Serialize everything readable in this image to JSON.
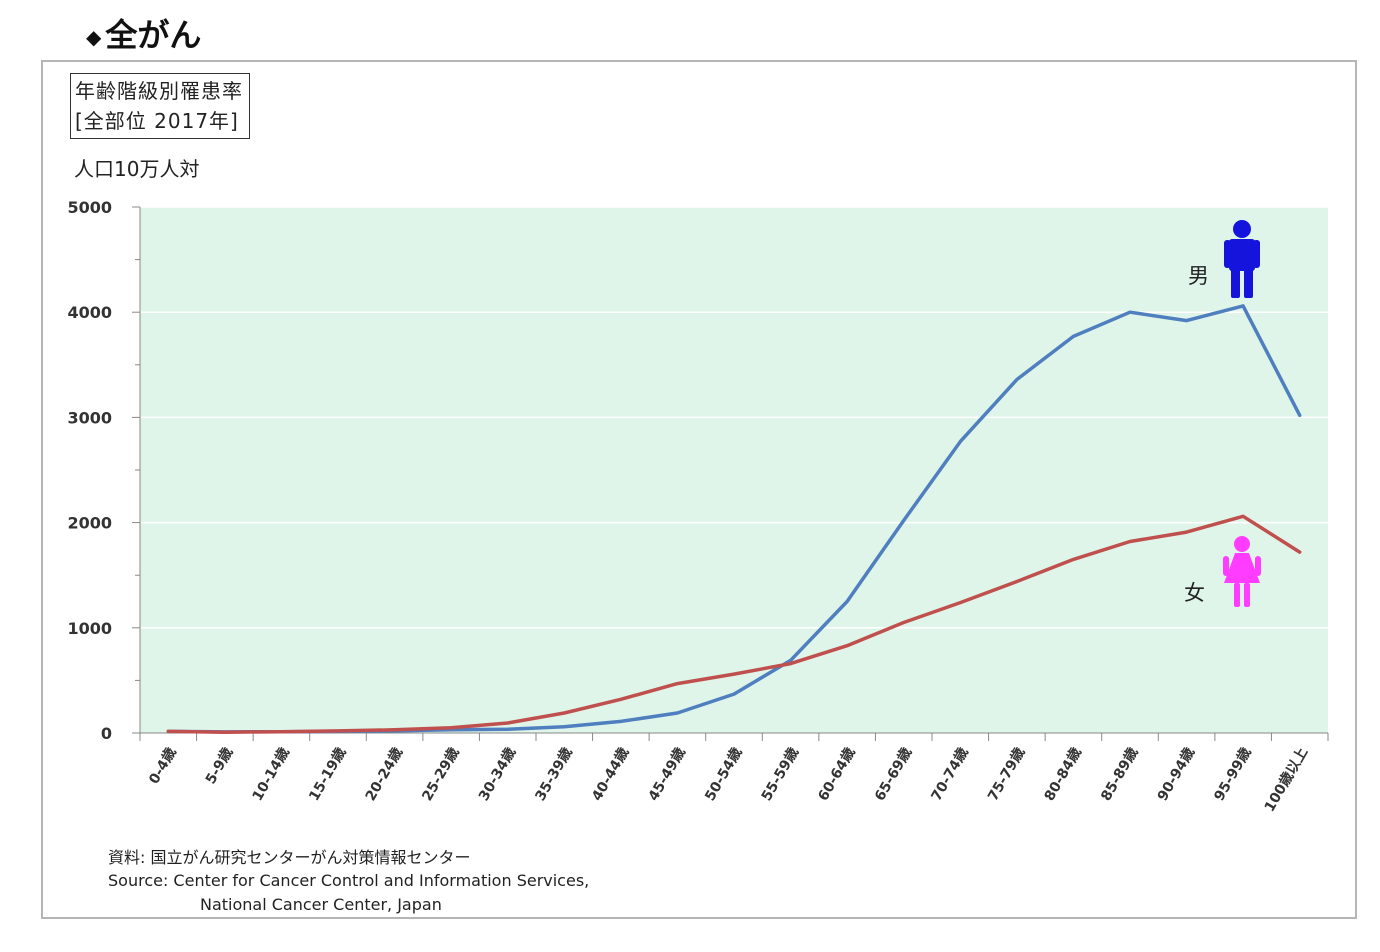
{
  "heading": {
    "bullet": "◆",
    "text": "全がん"
  },
  "chart_title": {
    "line1": "年齢階級別罹患率",
    "line2": "[全部位 2017年]"
  },
  "source": {
    "line1": "資料: 国立がん研究センターがん対策情報センター",
    "line2": "Source: Center for Cancer Control and Information Services,",
    "line3": "National Cancer Center, Japan"
  },
  "colors": {
    "plot_bg": "#dff5ea",
    "male": "#4f7fbf",
    "female": "#c0504d",
    "male_icon": "#1414dc",
    "female_icon": "#ff3cff"
  },
  "icons": {
    "male": "male-figure-icon",
    "female": "female-figure-icon"
  },
  "chart_data": {
    "type": "line",
    "ylabel": "人口10万人対",
    "ylim": [
      0,
      5000
    ],
    "yticks": [
      0,
      1000,
      2000,
      3000,
      4000,
      5000
    ],
    "grid": true,
    "categories": [
      "0-4歳",
      "5-9歳",
      "10-14歳",
      "15-19歳",
      "20-24歳",
      "25-29歳",
      "30-34歳",
      "35-39歳",
      "40-44歳",
      "45-49歳",
      "50-54歳",
      "55-59歳",
      "60-64歳",
      "65-69歳",
      "70-74歳",
      "75-79歳",
      "80-84歳",
      "85-89歳",
      "90-94歳",
      "95-99歳",
      "100歳以上"
    ],
    "series": [
      {
        "name": "男",
        "values": [
          15,
          10,
          12,
          15,
          20,
          30,
          35,
          60,
          110,
          190,
          370,
          690,
          1250,
          2020,
          2770,
          3360,
          3770,
          4000,
          3920,
          4060,
          3020
        ]
      },
      {
        "name": "女",
        "values": [
          15,
          8,
          12,
          20,
          30,
          50,
          95,
          190,
          320,
          470,
          560,
          660,
          830,
          1050,
          1240,
          1440,
          1650,
          1820,
          1910,
          2060,
          1720
        ]
      }
    ]
  }
}
